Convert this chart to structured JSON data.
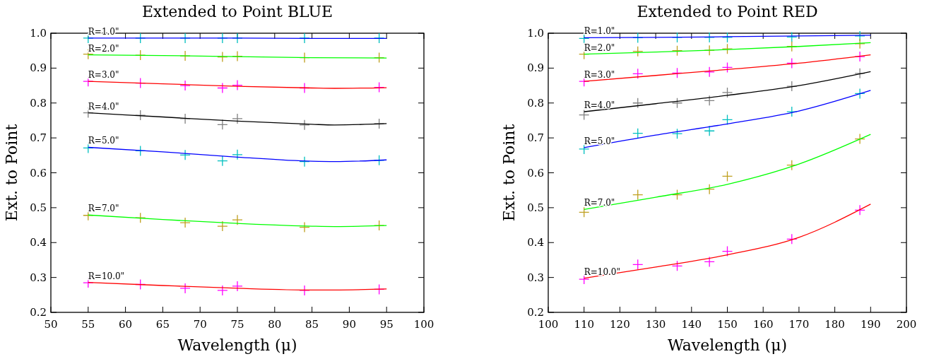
{
  "chart_data": [
    {
      "type": "scatter",
      "title": "Extended to Point BLUE",
      "xlabel": "Wavelength (μ)",
      "ylabel": "Ext. to Point",
      "xlim": [
        50,
        100
      ],
      "ylim": [
        0.2,
        1.0
      ],
      "xticks": [
        50,
        55,
        60,
        65,
        70,
        75,
        80,
        85,
        90,
        95,
        100
      ],
      "yticks": [
        0.2,
        0.3,
        0.4,
        0.5,
        0.6,
        0.7,
        0.8,
        0.9,
        {
          "value": 1.0,
          "label": "1.0"
        }
      ],
      "grid": false,
      "series": [
        {
          "type": "scatter",
          "marker": "cross",
          "color": "#00bfbf",
          "x": [
            55,
            62,
            68,
            73,
            75,
            84,
            94
          ],
          "values": [
            0.986,
            0.986,
            0.986,
            0.986,
            0.986,
            0.986,
            0.986
          ]
        },
        {
          "type": "scatter",
          "marker": "cross",
          "color": "#bf9f1f",
          "x": [
            55,
            62,
            68,
            73,
            75,
            84,
            94
          ],
          "values": [
            0.94,
            0.937,
            0.935,
            0.932,
            0.934,
            0.93,
            0.93
          ]
        },
        {
          "type": "scatter",
          "marker": "cross",
          "color": "#ff00ff",
          "x": [
            55,
            62,
            68,
            73,
            75,
            84,
            94
          ],
          "values": [
            0.862,
            0.857,
            0.85,
            0.843,
            0.851,
            0.843,
            0.845
          ]
        },
        {
          "type": "scatter",
          "marker": "cross",
          "color": "#808080",
          "x": [
            55,
            62,
            68,
            73,
            75,
            84,
            94
          ],
          "values": [
            0.772,
            0.765,
            0.755,
            0.738,
            0.755,
            0.737,
            0.741
          ]
        },
        {
          "type": "scatter",
          "marker": "cross",
          "color": "#00bfbf",
          "x": [
            55,
            62,
            68,
            73,
            75,
            84,
            94
          ],
          "values": [
            0.671,
            0.663,
            0.651,
            0.634,
            0.652,
            0.632,
            0.636
          ]
        },
        {
          "type": "scatter",
          "marker": "cross",
          "color": "#bf9f1f",
          "x": [
            55,
            62,
            68,
            73,
            75,
            84,
            94
          ],
          "values": [
            0.478,
            0.471,
            0.457,
            0.447,
            0.465,
            0.444,
            0.449
          ]
        },
        {
          "type": "scatter",
          "marker": "cross",
          "color": "#ff00ff",
          "x": [
            55,
            62,
            68,
            73,
            75,
            84,
            94
          ],
          "values": [
            0.285,
            0.28,
            0.269,
            0.263,
            0.275,
            0.263,
            0.266
          ]
        },
        {
          "type": "line",
          "color": "#0000ff",
          "x": [
            55,
            65,
            75,
            85,
            95
          ],
          "values": [
            0.986,
            0.986,
            0.986,
            0.985,
            0.985
          ]
        },
        {
          "type": "line",
          "color": "#00ff00",
          "x": [
            55,
            65,
            75,
            85,
            95
          ],
          "values": [
            0.938,
            0.936,
            0.933,
            0.93,
            0.929
          ]
        },
        {
          "type": "line",
          "color": "#ff0000",
          "x": [
            55,
            65,
            75,
            85,
            88,
            95
          ],
          "values": [
            0.862,
            0.855,
            0.848,
            0.843,
            0.842,
            0.844
          ]
        },
        {
          "type": "line",
          "color": "#000000",
          "x": [
            55,
            65,
            75,
            85,
            88,
            95
          ],
          "values": [
            0.772,
            0.76,
            0.748,
            0.739,
            0.737,
            0.741
          ]
        },
        {
          "type": "line",
          "color": "#0000ff",
          "x": [
            55,
            65,
            75,
            85,
            88,
            95
          ],
          "values": [
            0.673,
            0.66,
            0.645,
            0.633,
            0.632,
            0.637
          ]
        },
        {
          "type": "line",
          "color": "#00ff00",
          "x": [
            55,
            65,
            75,
            85,
            88,
            95
          ],
          "values": [
            0.479,
            0.466,
            0.455,
            0.447,
            0.446,
            0.449
          ]
        },
        {
          "type": "line",
          "color": "#ff0000",
          "x": [
            55,
            65,
            75,
            85,
            88,
            95
          ],
          "values": [
            0.286,
            0.277,
            0.269,
            0.264,
            0.264,
            0.267
          ]
        }
      ],
      "annotations": [
        "R=1.0\"",
        "R=2.0\"",
        "R=3.0\"",
        "R=4.0\"",
        "R=5.0\"",
        "R=7.0\"",
        "R=10.0\""
      ]
    },
    {
      "type": "scatter",
      "title": "Extended to Point RED",
      "xlabel": "Wavelength (μ)",
      "ylabel": "Ext. to Point",
      "xlim": [
        100,
        200
      ],
      "ylim": [
        0.2,
        1.0
      ],
      "xticks": [
        100,
        110,
        120,
        130,
        140,
        150,
        160,
        170,
        180,
        190,
        200
      ],
      "yticks": [
        0.2,
        0.3,
        0.4,
        0.5,
        0.6,
        0.7,
        0.8,
        0.9,
        {
          "value": 1.0,
          "label": "1.0"
        }
      ],
      "grid": false,
      "series": [
        {
          "type": "scatter",
          "marker": "cross",
          "color": "#00bfbf",
          "x": [
            110,
            125,
            136,
            145,
            150,
            168,
            187
          ],
          "values": [
            0.985,
            0.987,
            0.988,
            0.988,
            0.988,
            0.989,
            0.992
          ]
        },
        {
          "type": "scatter",
          "marker": "cross",
          "color": "#bf9f1f",
          "x": [
            110,
            125,
            136,
            145,
            150,
            168,
            187
          ],
          "values": [
            0.94,
            0.948,
            0.95,
            0.951,
            0.955,
            0.962,
            0.97
          ]
        },
        {
          "type": "scatter",
          "marker": "cross",
          "color": "#ff00ff",
          "x": [
            110,
            125,
            136,
            145,
            150,
            168,
            187
          ],
          "values": [
            0.862,
            0.884,
            0.886,
            0.889,
            0.902,
            0.914,
            0.933
          ]
        },
        {
          "type": "scatter",
          "marker": "cross",
          "color": "#808080",
          "x": [
            110,
            125,
            136,
            145,
            150,
            168,
            187
          ],
          "values": [
            0.766,
            0.8,
            0.8,
            0.807,
            0.83,
            0.848,
            0.885
          ]
        },
        {
          "type": "scatter",
          "marker": "cross",
          "color": "#00bfbf",
          "x": [
            110,
            125,
            136,
            145,
            150,
            168,
            187
          ],
          "values": [
            0.668,
            0.713,
            0.712,
            0.72,
            0.752,
            0.775,
            0.827
          ]
        },
        {
          "type": "scatter",
          "marker": "cross",
          "color": "#bf9f1f",
          "x": [
            110,
            125,
            136,
            145,
            150,
            168,
            187
          ],
          "values": [
            0.487,
            0.537,
            0.537,
            0.553,
            0.59,
            0.622,
            0.697
          ]
        },
        {
          "type": "scatter",
          "marker": "cross",
          "color": "#ff00ff",
          "x": [
            110,
            125,
            136,
            145,
            150,
            168,
            187
          ],
          "values": [
            0.295,
            0.337,
            0.333,
            0.345,
            0.375,
            0.41,
            0.493
          ]
        },
        {
          "type": "line",
          "color": "#0000ff",
          "x": [
            110,
            130,
            150,
            170,
            190
          ],
          "values": [
            0.987,
            0.988,
            0.99,
            0.992,
            0.994
          ]
        },
        {
          "type": "line",
          "color": "#00ff00",
          "x": [
            110,
            130,
            150,
            170,
            190
          ],
          "values": [
            0.94,
            0.946,
            0.953,
            0.962,
            0.973
          ]
        },
        {
          "type": "line",
          "color": "#ff0000",
          "x": [
            110,
            130,
            150,
            170,
            190
          ],
          "values": [
            0.862,
            0.879,
            0.896,
            0.914,
            0.938
          ]
        },
        {
          "type": "line",
          "color": "#000000",
          "x": [
            110,
            130,
            150,
            170,
            190
          ],
          "values": [
            0.775,
            0.798,
            0.822,
            0.85,
            0.89
          ]
        },
        {
          "type": "line",
          "color": "#0000ff",
          "x": [
            110,
            130,
            150,
            170,
            190
          ],
          "values": [
            0.672,
            0.708,
            0.74,
            0.777,
            0.836
          ]
        },
        {
          "type": "line",
          "color": "#00ff00",
          "x": [
            110,
            130,
            150,
            170,
            190
          ],
          "values": [
            0.495,
            0.53,
            0.567,
            0.625,
            0.71
          ]
        },
        {
          "type": "line",
          "color": "#ff0000",
          "x": [
            110,
            130,
            150,
            170,
            190
          ],
          "values": [
            0.298,
            0.33,
            0.365,
            0.415,
            0.51
          ]
        }
      ],
      "annotations": [
        "R=1.0\"",
        "R=2.0\"",
        "R=3.0\"",
        "R=4.0\"",
        "R=5.0\"",
        "R=7.0\"",
        "R=10.0\""
      ]
    }
  ]
}
